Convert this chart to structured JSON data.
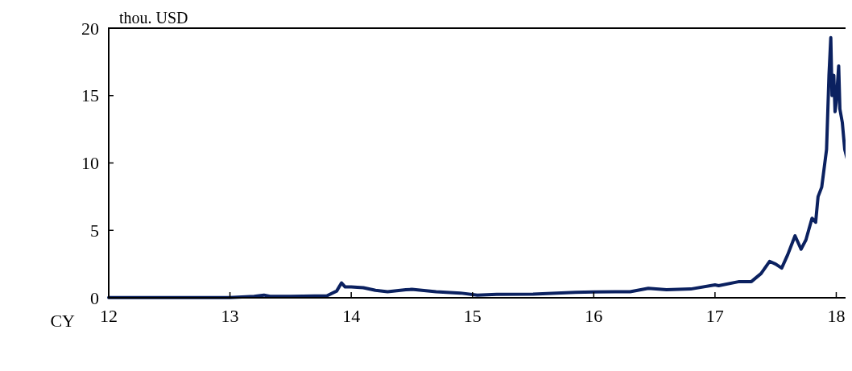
{
  "chart_data": {
    "type": "line",
    "ylabel": "thou. USD",
    "xlabel": "CY",
    "x": [
      12.0,
      12.3,
      12.6,
      12.9,
      13.0,
      13.2,
      13.28,
      13.33,
      13.5,
      13.8,
      13.88,
      13.92,
      13.95,
      14.0,
      14.1,
      14.2,
      14.3,
      14.45,
      14.5,
      14.7,
      14.9,
      15.04,
      15.2,
      15.5,
      15.85,
      16.0,
      16.3,
      16.45,
      16.6,
      16.8,
      17.0,
      17.03,
      17.2,
      17.3,
      17.38,
      17.45,
      17.5,
      17.55,
      17.6,
      17.66,
      17.71,
      17.75,
      17.8,
      17.83,
      17.85,
      17.88,
      17.92,
      17.94,
      17.955,
      17.965,
      17.98,
      17.99,
      18.0,
      18.02,
      18.03,
      18.05,
      18.07,
      18.09
    ],
    "series": [
      {
        "color": "#0b2160",
        "values": [
          0.01,
          0.01,
          0.01,
          0.01,
          0.01,
          0.1,
          0.2,
          0.1,
          0.1,
          0.15,
          0.5,
          1.1,
          0.8,
          0.8,
          0.75,
          0.55,
          0.45,
          0.6,
          0.62,
          0.45,
          0.35,
          0.2,
          0.25,
          0.27,
          0.4,
          0.43,
          0.45,
          0.7,
          0.6,
          0.65,
          0.95,
          0.9,
          1.2,
          1.2,
          1.8,
          2.7,
          2.5,
          2.2,
          3.2,
          4.6,
          3.6,
          4.3,
          5.9,
          5.6,
          7.5,
          8.2,
          11,
          16.5,
          19.3,
          15,
          16.5,
          13.8,
          14.5,
          17.2,
          14,
          13,
          11,
          10.3
        ]
      }
    ],
    "xlim": [
      12,
      18.09
    ],
    "xticks": [
      12,
      13,
      14,
      15,
      16,
      17,
      18
    ],
    "ylim": [
      0,
      20
    ],
    "yticks": [
      0,
      5,
      10,
      15,
      20
    ],
    "grid": false,
    "marker": "none",
    "line_style": "solid"
  }
}
